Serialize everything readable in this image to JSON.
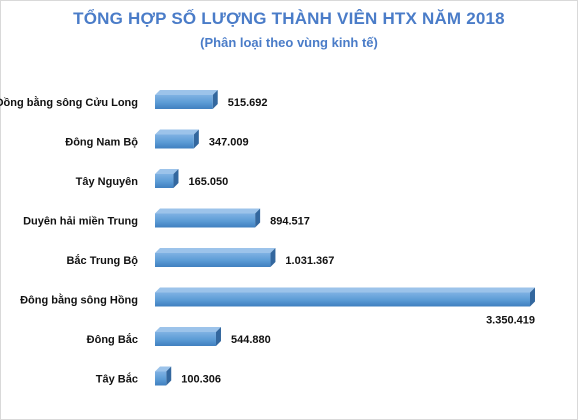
{
  "chart_data": {
    "type": "bar",
    "orientation": "horizontal",
    "title": "TỔNG HỢP SỐ LƯỢNG THÀNH VIÊN HTX NĂM 2018",
    "subtitle": "(Phân loại theo vùng kinh tế)",
    "categories": [
      "Đồng bằng sông Cửu Long",
      "Đông Nam Bộ",
      "Tây Nguyên",
      "Duyên hải miền Trung",
      "Bắc Trung Bộ",
      "Đông bằng sông Hồng",
      "Đông Bắc",
      "Tây Bắc"
    ],
    "values": [
      515692,
      347009,
      165050,
      894517,
      1031367,
      3350419,
      544880,
      100306
    ],
    "value_labels": [
      "515.692",
      "347.009",
      "165.050",
      "894.517",
      "1.031.367",
      "3.350.419",
      "544.880",
      "100.306"
    ],
    "bar_color": "#5b9bd5",
    "grid": false,
    "legend": "none",
    "xlim": [
      0,
      3350419
    ]
  }
}
